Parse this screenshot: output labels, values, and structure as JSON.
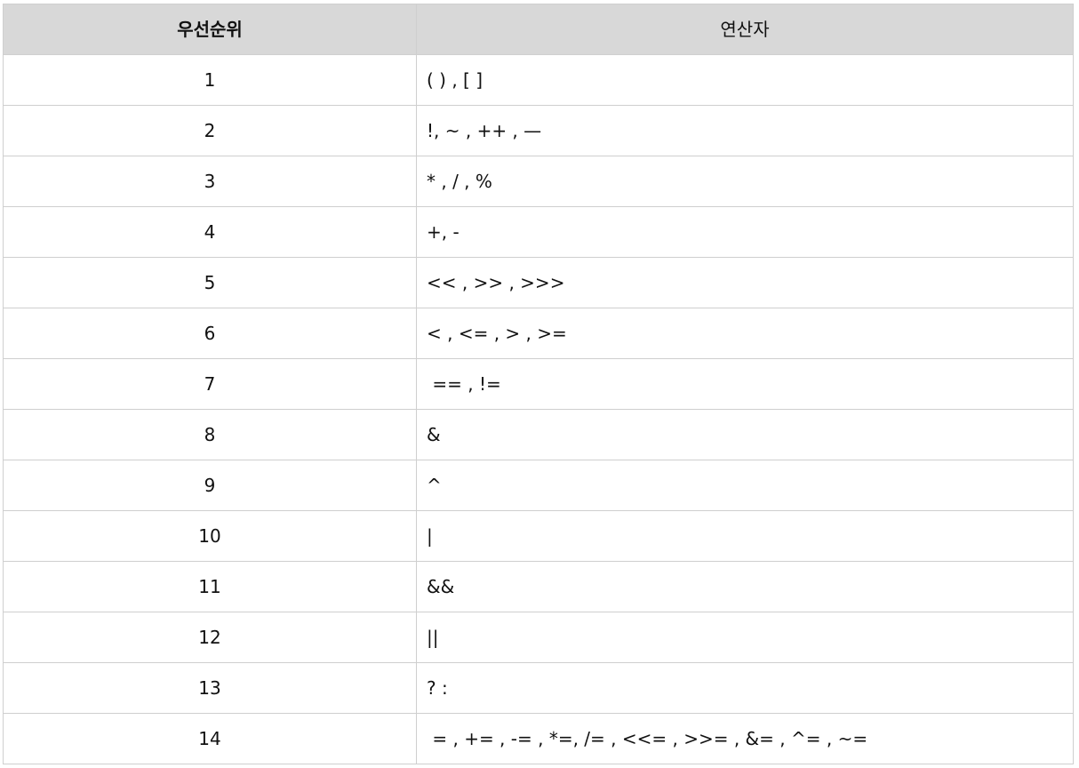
{
  "table": {
    "headers": {
      "rank": "우선순위",
      "operators": "연산자"
    },
    "rows": [
      {
        "rank": "1",
        "operators": "( ) , [ ]"
      },
      {
        "rank": "2",
        "operators": "!, ~ , ++ , —"
      },
      {
        "rank": "3",
        "operators": "* , / , %"
      },
      {
        "rank": "4",
        "operators": "+, -"
      },
      {
        "rank": "5",
        "operators": "<< , >> , >>>"
      },
      {
        "rank": "6",
        "operators": "< , <= , > , >="
      },
      {
        "rank": "7",
        "operators": " == , !="
      },
      {
        "rank": "8",
        "operators": "&"
      },
      {
        "rank": "9",
        "operators": "^"
      },
      {
        "rank": "10",
        "operators": "|"
      },
      {
        "rank": "11",
        "operators": "&&"
      },
      {
        "rank": "12",
        "operators": "||"
      },
      {
        "rank": "13",
        "operators": "? :"
      },
      {
        "rank": "14",
        "operators": " = , += , -= , *=, /= , <<= , >>= , &= , ^= , ~="
      }
    ]
  }
}
